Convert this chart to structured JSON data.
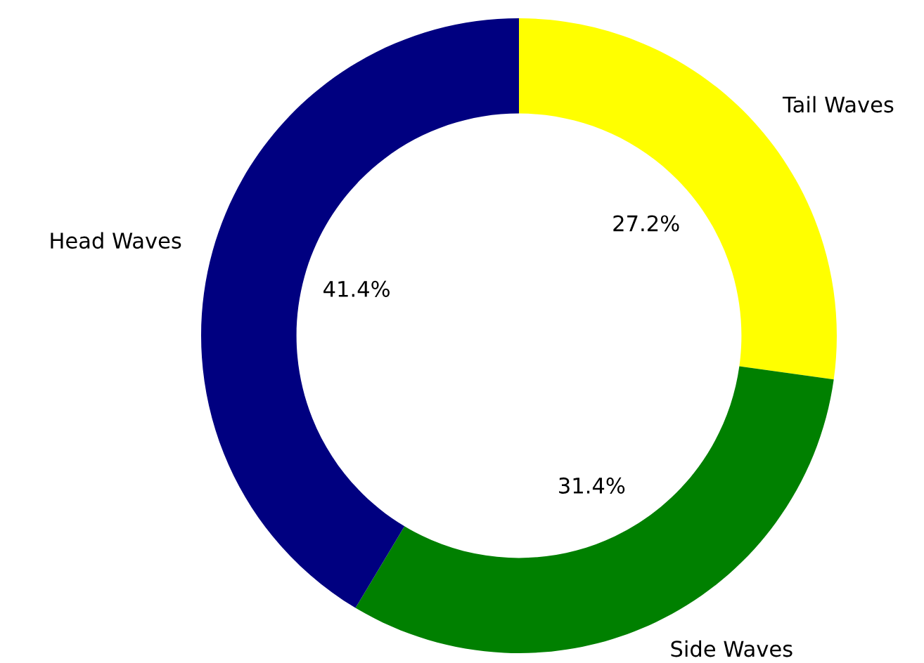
{
  "chart_data": {
    "type": "donut",
    "categories": [
      "Tail Waves",
      "Side Waves",
      "Head Waves"
    ],
    "values": [
      27.2,
      31.4,
      41.4
    ],
    "colors": [
      "#ffff00",
      "#008000",
      "#000080"
    ],
    "value_labels": [
      "27.2%",
      "31.4%",
      "41.4%"
    ],
    "legend": false
  }
}
